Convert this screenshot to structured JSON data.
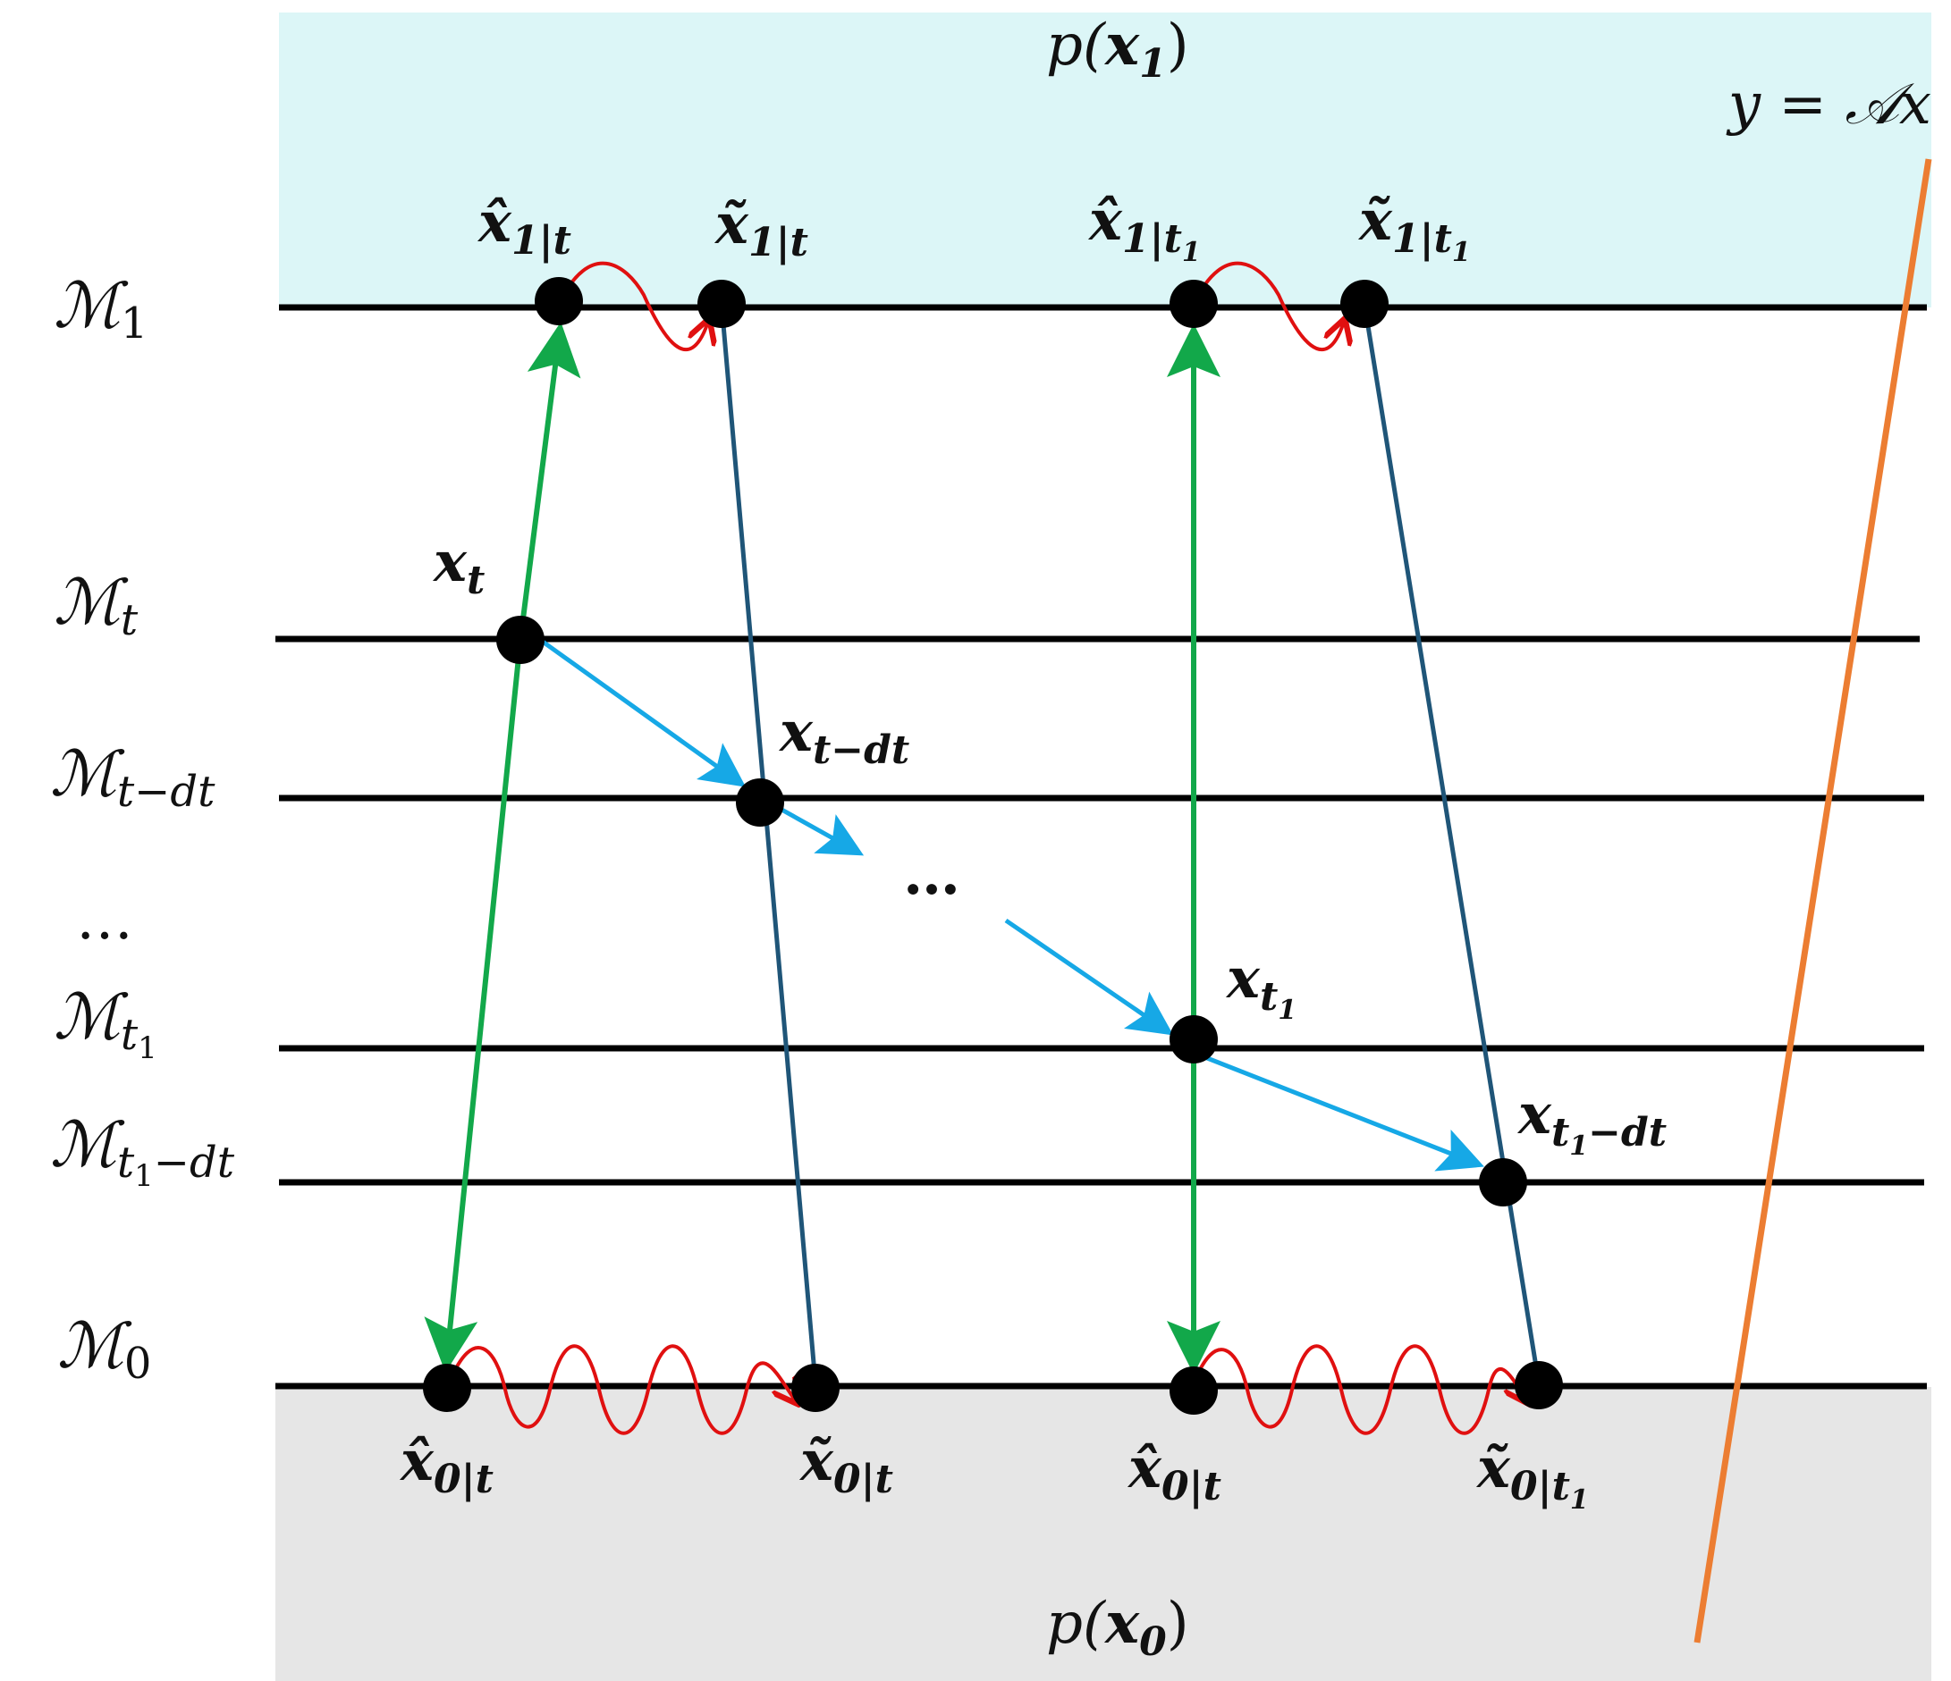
{
  "colors": {
    "top_region": "#dcf6f7",
    "bottom_region": "#e6e6e6",
    "manifold_line": "#000000",
    "node": "#000000",
    "green_arrow": "#12a84a",
    "dark_line": "#1f5578",
    "cyan_arrow": "#16a8e6",
    "red_wave": "#e01010",
    "orange_line": "#ec7d32"
  },
  "regions": {
    "top": {
      "label": "p(x₁)",
      "base": "p(",
      "var": "x",
      "sub": "1",
      "close": ")"
    },
    "bottom": {
      "label": "p(x₀)",
      "base": "p(",
      "var": "x",
      "sub": "0",
      "close": ")"
    }
  },
  "measurement": {
    "label": "y = 𝒜x"
  },
  "manifolds": [
    {
      "id": "M1",
      "base": "ℳ",
      "sub": "1"
    },
    {
      "id": "Mt",
      "base": "ℳ",
      "sub": "t"
    },
    {
      "id": "Mt-dt",
      "base": "ℳ",
      "sub": "t−dt"
    },
    {
      "id": "Mt1",
      "base": "ℳ",
      "sub": "t",
      "subsub": "1"
    },
    {
      "id": "Mt1-dt",
      "base": "ℳ",
      "sub": "t",
      "subsub": "1",
      "subtail": "−dt"
    },
    {
      "id": "M0",
      "base": "ℳ",
      "sub": "0"
    }
  ],
  "ellipsis_left": "…",
  "ellipsis_mid": "…",
  "nodes": {
    "xhat_1_t": {
      "var": "x̂",
      "sub": "1|t"
    },
    "xtil_1_t": {
      "var": "x̃",
      "sub": "1|t"
    },
    "xhat_1_t1": {
      "var": "x̂",
      "sub": "1|t",
      "subsub": "1"
    },
    "xtil_1_t1": {
      "var": "x̃",
      "sub": "1|t",
      "subsub": "1"
    },
    "x_t": {
      "var": "x",
      "sub": "t"
    },
    "x_t_dt": {
      "var": "x",
      "sub": "t−dt"
    },
    "x_t1": {
      "var": "x",
      "sub": "t",
      "subsub": "1"
    },
    "x_t1_dt": {
      "var": "x",
      "sub": "t",
      "subsub": "1",
      "subtail": "−dt"
    },
    "xhat_0_t": {
      "var": "x̂",
      "sub": "0|t"
    },
    "xtil_0_t": {
      "var": "x̃",
      "sub": "0|t"
    },
    "xhat_0_t_b": {
      "var": "x̂",
      "sub": "0|t"
    },
    "xtil_0_t1": {
      "var": "x̃",
      "sub": "0|t",
      "subsub": "1"
    }
  }
}
